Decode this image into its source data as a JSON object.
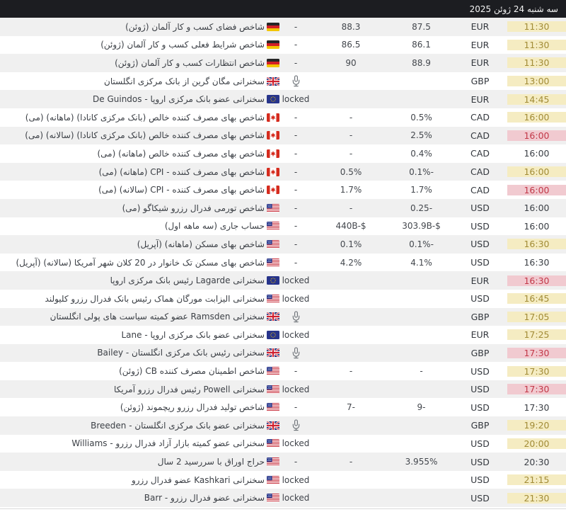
{
  "header": {
    "date_label": "سه شنبه 24 ژوئن 2025"
  },
  "labels": {
    "locked": "locked"
  },
  "colors": {
    "header_bg": "#1c1d21",
    "row_alt_bg": "#f0f0f0",
    "text": "#3c4046",
    "time_yellow_bg": "#f5ecc2",
    "time_yellow_text": "#a28c36",
    "time_pink_bg": "#f1cad0",
    "time_pink_text": "#c23848"
  },
  "icons": {
    "speech": "microphone-icon",
    "flags": [
      "germany-flag-icon",
      "uk-flag-icon",
      "eu-flag-icon",
      "canada-flag-icon",
      "us-flag-icon"
    ]
  },
  "table": {
    "rows": [
      {
        "title": "شاخص فضای کسب و کار آلمان (ژوئن)",
        "country": "germany",
        "type": "value",
        "actual": "-",
        "forecast": "88.3",
        "previous": "87.5",
        "currency": "EUR",
        "time": "11:30",
        "highlight": "yellow"
      },
      {
        "title": "شاخص شرایط فعلی کسب و کار آلمان (ژوئن)",
        "country": "germany",
        "type": "value",
        "actual": "-",
        "forecast": "86.5",
        "previous": "86.1",
        "currency": "EUR",
        "time": "11:30",
        "highlight": "yellow"
      },
      {
        "title": "شاخص انتظارات کسب و کار آلمان (ژوئن)",
        "country": "germany",
        "type": "value",
        "actual": "-",
        "forecast": "90",
        "previous": "88.9",
        "currency": "EUR",
        "time": "11:30",
        "highlight": "yellow"
      },
      {
        "title": "سخنرانی مگان گرین از بانک مرکزی انگلستان",
        "country": "uk",
        "type": "mic",
        "actual": "",
        "forecast": "",
        "previous": "",
        "currency": "GBP",
        "time": "13:00",
        "highlight": "yellow"
      },
      {
        "title": "سخنرانی عضو بانک مرکزی اروپا - De Guindos",
        "country": "eu",
        "type": "locked",
        "actual": "",
        "forecast": "",
        "previous": "",
        "currency": "EUR",
        "time": "14:45",
        "highlight": "yellow"
      },
      {
        "title": "شاخص بهای مصرف کننده خالص (بانک مرکزی کانادا) (ماهانه) (می)",
        "country": "canada",
        "type": "value",
        "actual": "-",
        "forecast": "-",
        "previous": "0.5%",
        "currency": "CAD",
        "time": "16:00",
        "highlight": "yellow"
      },
      {
        "title": "شاخص بهای مصرف کننده خالص (بانک مرکزی کانادا) (سالانه) (می)",
        "country": "canada",
        "type": "value",
        "actual": "-",
        "forecast": "-",
        "previous": "2.5%",
        "currency": "CAD",
        "time": "16:00",
        "highlight": "pink"
      },
      {
        "title": "شاخص بهای مصرف کننده خالص (ماهانه) (می)",
        "country": "canada",
        "type": "value",
        "actual": "-",
        "forecast": "-",
        "previous": "0.4%",
        "currency": "CAD",
        "time": "16:00",
        "highlight": "none"
      },
      {
        "title": "شاخص بهای مصرف کننده - CPI (ماهانه) (می)",
        "country": "canada",
        "type": "value",
        "actual": "-",
        "forecast": "0.5%",
        "previous": "0.1%-",
        "currency": "CAD",
        "time": "16:00",
        "highlight": "yellow"
      },
      {
        "title": "شاخص بهای مصرف کننده - CPI (سالانه) (می)",
        "country": "canada",
        "type": "value",
        "actual": "-",
        "forecast": "1.7%",
        "previous": "1.7%",
        "currency": "CAD",
        "time": "16:00",
        "highlight": "pink"
      },
      {
        "title": "شاخص تورمی فدرال رزرو شیکاگو (می)",
        "country": "us",
        "type": "value",
        "actual": "-",
        "forecast": "-",
        "previous": "0.25-",
        "currency": "USD",
        "time": "16:00",
        "highlight": "none"
      },
      {
        "title": "حساب جاری (سه ماهه اول)",
        "country": "us",
        "type": "value",
        "actual": "-",
        "forecast": "440B-$",
        "previous": "303.9B-$",
        "currency": "USD",
        "time": "16:00",
        "highlight": "none"
      },
      {
        "title": "شاخص بهای مسکن (ماهانه) (آپریل)",
        "country": "us",
        "type": "value",
        "actual": "-",
        "forecast": "0.1%",
        "previous": "0.1%-",
        "currency": "USD",
        "time": "16:30",
        "highlight": "yellow"
      },
      {
        "title": "شاخص بهای مسکن تک خانوار در 20 کلان شهر آمریکا (سالانه) (آپریل)",
        "country": "us",
        "type": "value",
        "actual": "-",
        "forecast": "4.2%",
        "previous": "4.1%",
        "currency": "USD",
        "time": "16:30",
        "highlight": "none"
      },
      {
        "title": "سخنرانی Lagarde رئیس بانک مرکزی اروپا",
        "country": "eu",
        "type": "locked",
        "actual": "",
        "forecast": "",
        "previous": "",
        "currency": "EUR",
        "time": "16:30",
        "highlight": "pink"
      },
      {
        "title": "سخنرانی الیزابت مورگان هماک رئیس بانک فدرال رزرو کلیولند",
        "country": "us",
        "type": "locked",
        "actual": "",
        "forecast": "",
        "previous": "",
        "currency": "USD",
        "time": "16:45",
        "highlight": "yellow"
      },
      {
        "title": "سخنرانی Ramsden عضو کمیته سیاست های پولی انگلستان",
        "country": "uk",
        "type": "mic",
        "actual": "",
        "forecast": "",
        "previous": "",
        "currency": "GBP",
        "time": "17:05",
        "highlight": "yellow"
      },
      {
        "title": "سخنرانی عضو بانک مرکزی اروپا - Lane",
        "country": "eu",
        "type": "locked",
        "actual": "",
        "forecast": "",
        "previous": "",
        "currency": "EUR",
        "time": "17:25",
        "highlight": "yellow"
      },
      {
        "title": "سخنرانی رئیس بانک مرکزی انگلستان - Bailey",
        "country": "uk",
        "type": "mic",
        "actual": "",
        "forecast": "",
        "previous": "",
        "currency": "GBP",
        "time": "17:30",
        "highlight": "pink"
      },
      {
        "title": "شاخص اطمینان مصرف کننده CB (ژوئن)",
        "country": "us",
        "type": "value",
        "actual": "-",
        "forecast": "-",
        "previous": "-",
        "currency": "USD",
        "time": "17:30",
        "highlight": "yellow"
      },
      {
        "title": "سخنرانی Powell رئیس فدرال رزرو آمریکا",
        "country": "us",
        "type": "locked",
        "actual": "",
        "forecast": "",
        "previous": "",
        "currency": "USD",
        "time": "17:30",
        "highlight": "pink"
      },
      {
        "title": "شاخص تولید فدرال رزرو ریچموند (ژوئن)",
        "country": "us",
        "type": "value",
        "actual": "-",
        "forecast": "7-",
        "previous": "9-",
        "currency": "USD",
        "time": "17:30",
        "highlight": "none"
      },
      {
        "title": "سخنرانی عضو بانک مرکزی انگلستان - Breeden",
        "country": "uk",
        "type": "mic",
        "actual": "",
        "forecast": "",
        "previous": "",
        "currency": "GBP",
        "time": "19:20",
        "highlight": "yellow"
      },
      {
        "title": "سخنرانی عضو کمیته بازار آزاد فدرال رزرو - Williams",
        "country": "us",
        "type": "locked",
        "actual": "",
        "forecast": "",
        "previous": "",
        "currency": "USD",
        "time": "20:00",
        "highlight": "yellow"
      },
      {
        "title": "حراج اوراق با سررسید 2 سال",
        "country": "us",
        "type": "value",
        "actual": "-",
        "forecast": "-",
        "previous": "3.955%",
        "currency": "USD",
        "time": "20:30",
        "highlight": "none"
      },
      {
        "title": "سخنرانی Kashkari عضو فدرال رزرو",
        "country": "us",
        "type": "locked",
        "actual": "",
        "forecast": "",
        "previous": "",
        "currency": "USD",
        "time": "21:15",
        "highlight": "yellow"
      },
      {
        "title": "سخنرانی عضو فدرال رزرو - Barr",
        "country": "us",
        "type": "locked",
        "actual": "",
        "forecast": "",
        "previous": "",
        "currency": "USD",
        "time": "21:30",
        "highlight": "yellow"
      }
    ]
  }
}
